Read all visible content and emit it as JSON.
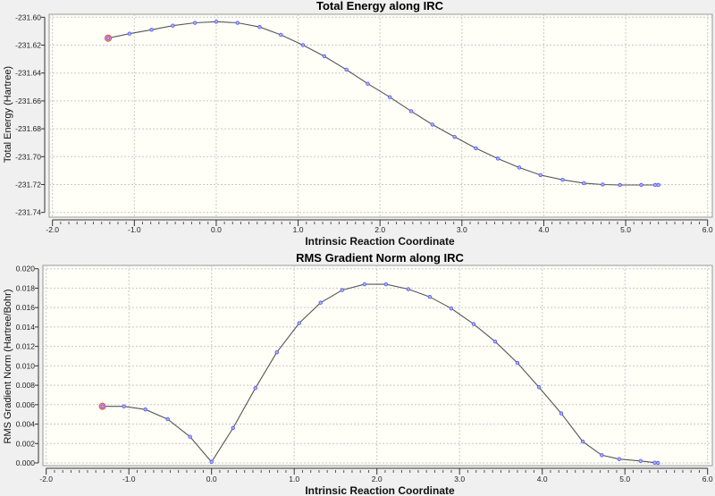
{
  "colors": {
    "background": "#f0f0f0",
    "plot_background": "#fffff8",
    "line": "#555555",
    "marker": "#5555ee",
    "highlight": "#ee4444",
    "grid": "#c8c8c8"
  },
  "chart_data": [
    {
      "type": "line",
      "title": "Total Energy along IRC",
      "xlabel": "Intrinsic Reaction Coordinate",
      "ylabel": "Total Energy (Hartree)",
      "xlim": [
        -2.0,
        6.0
      ],
      "ylim": [
        -231.74,
        -231.6
      ],
      "xticks": [
        "-2.0",
        "-1.0",
        "0.0",
        "1.0",
        "2.0",
        "3.0",
        "4.0",
        "5.0",
        "6.0"
      ],
      "yticks": [
        "-231.60",
        "-231.62",
        "-231.64",
        "-231.66",
        "-231.68",
        "-231.70",
        "-231.72",
        "-231.74"
      ],
      "grid": true,
      "highlighted_point_index": 0,
      "x": [
        -1.32,
        -1.06,
        -0.79,
        -0.53,
        -0.26,
        0.0,
        0.26,
        0.53,
        0.79,
        1.06,
        1.32,
        1.59,
        1.85,
        2.12,
        2.38,
        2.64,
        2.91,
        3.17,
        3.44,
        3.7,
        3.96,
        4.23,
        4.49,
        4.72,
        4.93,
        5.19,
        5.36,
        5.4
      ],
      "y": [
        -231.615,
        -231.6118,
        -231.609,
        -231.606,
        -231.604,
        -231.6032,
        -231.604,
        -231.607,
        -231.6126,
        -231.62,
        -231.628,
        -231.6376,
        -231.6477,
        -231.6573,
        -231.6674,
        -231.677,
        -231.6858,
        -231.694,
        -231.7014,
        -231.7078,
        -231.7132,
        -231.7166,
        -231.719,
        -231.72,
        -231.7203,
        -231.7203,
        -231.7203,
        -231.7203
      ]
    },
    {
      "type": "line",
      "title": "RMS Gradient Norm along IRC",
      "xlabel": "Intrinsic Reaction Coordinate",
      "ylabel": "RMS Gradient Norm (Hartree/Bohr)",
      "xlim": [
        -2.0,
        6.0
      ],
      "ylim": [
        0.0,
        0.02
      ],
      "xticks": [
        "-2.0",
        "-1.0",
        "0.0",
        "1.0",
        "2.0",
        "3.0",
        "4.0",
        "5.0",
        "6.0"
      ],
      "yticks": [
        "0.020",
        "0.018",
        "0.016",
        "0.014",
        "0.012",
        "0.010",
        "0.008",
        "0.006",
        "0.004",
        "0.002",
        "0.000"
      ],
      "grid": true,
      "highlighted_point_index": 0,
      "x": [
        -1.32,
        -1.06,
        -0.8,
        -0.53,
        -0.26,
        0.0,
        0.26,
        0.53,
        0.79,
        1.06,
        1.32,
        1.58,
        1.85,
        2.11,
        2.38,
        2.64,
        2.9,
        3.17,
        3.43,
        3.7,
        3.96,
        4.23,
        4.49,
        4.72,
        4.93,
        5.19,
        5.36,
        5.4
      ],
      "y": [
        0.00583,
        0.00583,
        0.0055,
        0.0045,
        0.0027,
        0.0001,
        0.0036,
        0.0077,
        0.0114,
        0.0144,
        0.0165,
        0.0178,
        0.0184,
        0.0184,
        0.0179,
        0.0171,
        0.0159,
        0.0143,
        0.0125,
        0.0103,
        0.0078,
        0.0051,
        0.0022,
        0.0008,
        0.0004,
        0.0002,
        3e-05,
        0.0
      ]
    }
  ]
}
